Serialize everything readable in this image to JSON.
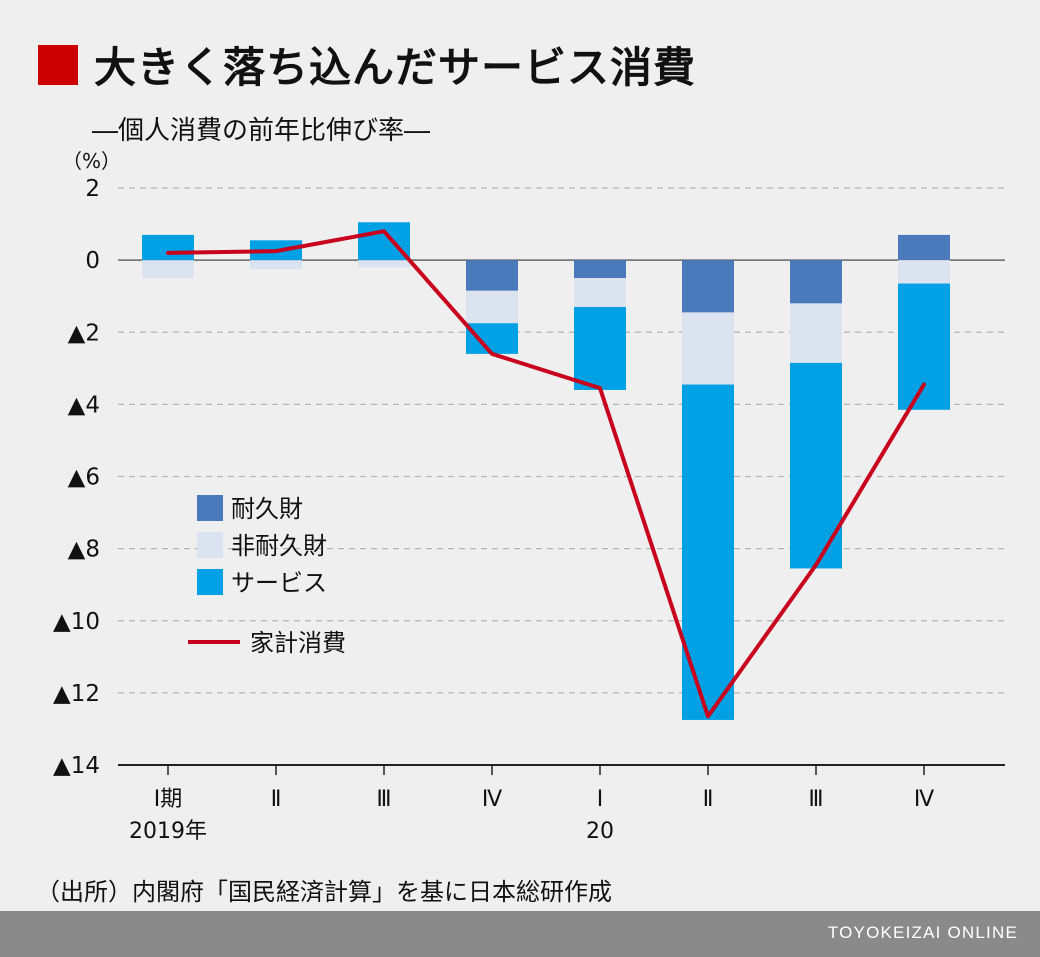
{
  "title": "大きく落ち込んだサービス消費",
  "subtitle": "―個人消費の前年比伸び率―",
  "unit": "（%）",
  "source": "（出所）内閣府「国民経済計算」を基に日本総研作成",
  "footer": "TOYOKEIZAI ONLINE",
  "colors": {
    "durable": "#4a7abb",
    "nondurable": "#dce3f0",
    "services": "#00a0e4",
    "household": "#c8001e",
    "title_mark": "#cc0000"
  },
  "chart_data": {
    "type": "bar",
    "stacked": true,
    "ylim": [
      -14,
      2
    ],
    "yticks": [
      {
        "value": 2,
        "label": "2"
      },
      {
        "value": 0,
        "label": "0"
      },
      {
        "value": -2,
        "label": "▲2"
      },
      {
        "value": -4,
        "label": "▲4"
      },
      {
        "value": -6,
        "label": "▲6"
      },
      {
        "value": -8,
        "label": "▲8"
      },
      {
        "value": -10,
        "label": "▲10"
      },
      {
        "value": -12,
        "label": "▲12"
      },
      {
        "value": -14,
        "label": "▲14"
      }
    ],
    "categories": [
      "Ⅰ期",
      "Ⅱ",
      "Ⅲ",
      "Ⅳ",
      "Ⅰ",
      "Ⅱ",
      "Ⅲ",
      "Ⅳ"
    ],
    "year_labels": [
      {
        "index": 0,
        "label": "2019年"
      },
      {
        "index": 4,
        "label": "20"
      }
    ],
    "grid": true,
    "legend_position": "left-middle",
    "series": [
      {
        "name": "耐久財",
        "color": "#4a7abb",
        "values": [
          0.0,
          0.0,
          0.0,
          -0.85,
          -0.5,
          -1.45,
          -1.2,
          0.7
        ]
      },
      {
        "name": "非耐久財",
        "color": "#dce3f0",
        "values": [
          -0.5,
          -0.25,
          -0.2,
          -0.9,
          -0.8,
          -2.0,
          -1.65,
          -0.65
        ]
      },
      {
        "name": "サービス",
        "color": "#00a0e4",
        "values": [
          0.7,
          0.55,
          1.05,
          -0.85,
          -2.3,
          -9.3,
          -5.7,
          -3.5
        ]
      }
    ],
    "line": {
      "name": "家計消費",
      "color": "#c8001e",
      "values": [
        0.2,
        0.25,
        0.8,
        -2.6,
        -3.55,
        -12.65,
        -8.45,
        -3.45
      ]
    }
  }
}
